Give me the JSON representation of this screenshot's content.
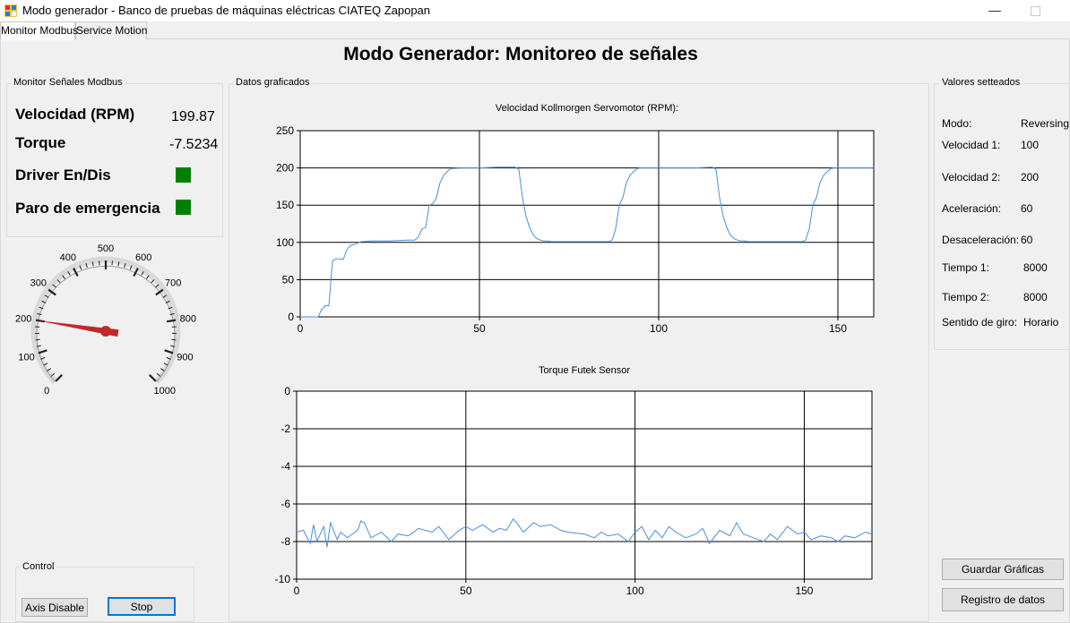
{
  "window": {
    "title": "Modo generador - Banco de pruebas de máquinas eléctricas CIATEQ Zapopan",
    "minimize_glyph": "—"
  },
  "tabs": [
    {
      "label": "Monitor Modbus",
      "active": true
    },
    {
      "label": "Service Motion",
      "active": false
    }
  ],
  "page_title": "Modo Generador: Monitoreo de señales",
  "monitor": {
    "group_label": "Monitor Señales Modbus",
    "velocidad_label": "Velocidad (RPM)",
    "velocidad_value": "199.87",
    "torque_label": "Torque",
    "torque_value": "-7.5234",
    "driver_label": "Driver En/Dis",
    "paro_label": "Paro de emergencia",
    "led_color": "#008000"
  },
  "gauge": {
    "min": 0,
    "max": 1000,
    "value": 199.87,
    "tick_labels": [
      "0",
      "100",
      "200",
      "300",
      "400",
      "500",
      "600",
      "700",
      "800",
      "900",
      "1000"
    ],
    "needle_color": "#c0292b"
  },
  "control": {
    "group_label": "Control",
    "axis_disable_label": "Axis Disable",
    "stop_label": "Stop"
  },
  "datos": {
    "group_label": "Datos graficados"
  },
  "chart_data": [
    {
      "type": "line",
      "title": "Velocidad Kollmorgen Servomotor (RPM):",
      "xlim": [
        0,
        160
      ],
      "ylim": [
        0,
        250
      ],
      "xticks": [
        0,
        50,
        100,
        150
      ],
      "yticks": [
        0,
        50,
        100,
        150,
        200,
        250
      ],
      "grid": true,
      "line_color": "#4a90d9",
      "series": [
        {
          "x": [
            0,
            5,
            6,
            7,
            8,
            9,
            10,
            11,
            12,
            13,
            14,
            15,
            16,
            17,
            20,
            25,
            30,
            32,
            33,
            34,
            35,
            36,
            37,
            38,
            39,
            40,
            41,
            42,
            45,
            50,
            55,
            60,
            61,
            62,
            63,
            64,
            65,
            66,
            67,
            68,
            69,
            70,
            72,
            75,
            80,
            85,
            86,
            87,
            88,
            89,
            90,
            91,
            92,
            93,
            94,
            95,
            96,
            97,
            100,
            110,
            115,
            116,
            117,
            118,
            119,
            120,
            121,
            122,
            123,
            124,
            125,
            126,
            128,
            130,
            140,
            141,
            142,
            143,
            144,
            145,
            146,
            147,
            148,
            149,
            150,
            151,
            152,
            155,
            160
          ],
          "y": [
            0,
            0,
            10,
            15,
            15,
            75,
            78,
            78,
            77,
            90,
            96,
            97,
            99,
            101,
            102,
            102,
            103,
            103,
            108,
            118,
            120,
            150,
            152,
            160,
            180,
            190,
            195,
            199,
            200,
            200,
            201,
            201,
            198,
            160,
            135,
            120,
            110,
            105,
            103,
            102,
            102,
            101,
            101,
            101,
            101,
            101,
            101,
            103,
            118,
            150,
            160,
            180,
            190,
            195,
            199,
            200,
            200,
            200,
            200,
            200,
            201,
            198,
            160,
            135,
            120,
            110,
            105,
            103,
            102,
            102,
            101,
            101,
            101,
            101,
            101,
            103,
            118,
            150,
            160,
            180,
            190,
            195,
            199,
            200,
            200,
            200,
            200,
            200,
            200
          ]
        }
      ]
    },
    {
      "type": "line",
      "title": "Torque Futek Sensor",
      "xlim": [
        0,
        170
      ],
      "ylim": [
        -10,
        0
      ],
      "xticks": [
        0,
        50,
        100,
        150
      ],
      "yticks": [
        0,
        -2,
        -4,
        -6,
        -8,
        -10
      ],
      "grid": true,
      "line_color": "#4a90d9",
      "series": [
        {
          "x": [
            0,
            2,
            4,
            5,
            6,
            8,
            9,
            10,
            12,
            13,
            15,
            18,
            19,
            20,
            22,
            25,
            28,
            30,
            33,
            36,
            40,
            42,
            45,
            48,
            50,
            52,
            55,
            58,
            60,
            62,
            64,
            65,
            67,
            70,
            72,
            75,
            78,
            80,
            85,
            88,
            90,
            92,
            95,
            98,
            100,
            102,
            104,
            106,
            108,
            110,
            112,
            115,
            118,
            120,
            122,
            125,
            128,
            130,
            132,
            135,
            138,
            140,
            142,
            145,
            148,
            150,
            152,
            155,
            158,
            160,
            162,
            165,
            168,
            170
          ],
          "y": [
            -7.5,
            -7.4,
            -8.1,
            -7.1,
            -8.0,
            -7.2,
            -8.3,
            -7.0,
            -7.9,
            -7.5,
            -7.8,
            -7.4,
            -6.9,
            -7.0,
            -7.8,
            -7.5,
            -8.0,
            -7.6,
            -7.7,
            -7.3,
            -7.5,
            -7.2,
            -7.9,
            -7.4,
            -7.2,
            -7.4,
            -7.1,
            -7.5,
            -7.3,
            -7.4,
            -6.8,
            -7.0,
            -7.5,
            -7.0,
            -7.2,
            -7.1,
            -7.4,
            -7.5,
            -7.6,
            -7.8,
            -7.5,
            -7.7,
            -7.6,
            -8.0,
            -7.5,
            -7.2,
            -7.9,
            -7.4,
            -7.8,
            -7.2,
            -7.5,
            -7.8,
            -7.6,
            -7.3,
            -8.1,
            -7.4,
            -7.7,
            -7.0,
            -7.6,
            -7.8,
            -8.0,
            -7.6,
            -7.9,
            -7.2,
            -7.6,
            -7.5,
            -7.9,
            -7.7,
            -7.8,
            -8.0,
            -7.7,
            -7.8,
            -7.5,
            -7.6
          ]
        }
      ]
    }
  ],
  "valores": {
    "group_label": "Valores setteados",
    "rows": [
      {
        "label": "Modo:",
        "value": "Reversing"
      },
      {
        "label": "Velocidad 1:",
        "value": "100"
      },
      {
        "label": "Velocidad 2:",
        "value": "200"
      },
      {
        "label": "Aceleración:",
        "value": "60"
      },
      {
        "label": "Desaceleración:",
        "value": "60"
      },
      {
        "label": "Tiempo 1:",
        "value": "8000"
      },
      {
        "label": "Tiempo 2:",
        "value": "8000"
      },
      {
        "label": "Sentido de giro:",
        "value": "Horario"
      }
    ]
  },
  "actions": {
    "guardar_label": "Guardar Gráficas",
    "registro_label": "Registro de datos"
  }
}
